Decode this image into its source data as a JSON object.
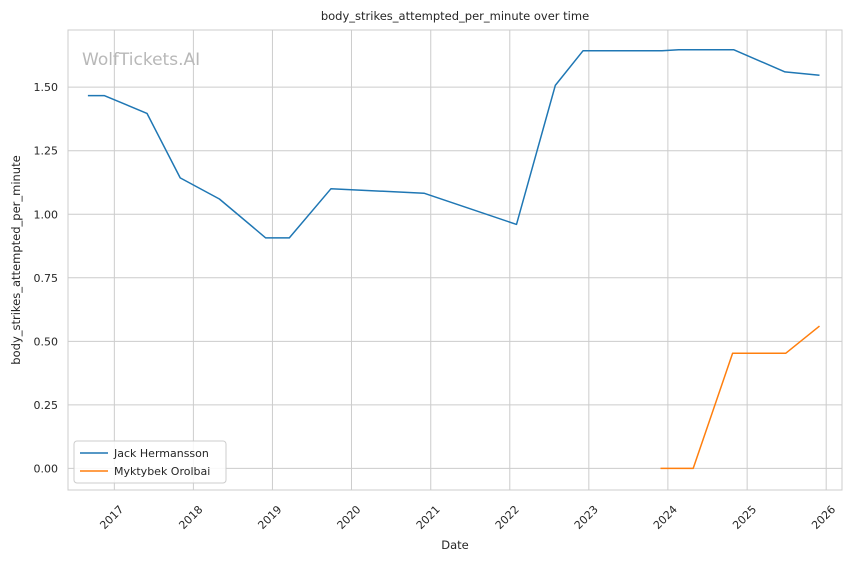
{
  "chart_data": {
    "type": "line",
    "title": "body_strikes_attempted_per_minute over time",
    "xlabel": "Date",
    "ylabel": "body_strikes_attempted_per_minute",
    "watermark": "WolfTickets.AI",
    "x_ticks": [
      "2017",
      "2018",
      "2019",
      "2020",
      "2021",
      "2022",
      "2023",
      "2024",
      "2025",
      "2026"
    ],
    "y_ticks": [
      "0.00",
      "0.25",
      "0.50",
      "0.75",
      "1.00",
      "1.25",
      "1.50"
    ],
    "xlim": [
      "2016-06-01",
      "2026-03-15"
    ],
    "ylim": [
      -0.085,
      1.725
    ],
    "grid": true,
    "legend_position": "lower-left",
    "series": [
      {
        "name": "Jack Hermansson",
        "color": "#1f77b4",
        "points": [
          [
            "2016-09-01",
            1.467
          ],
          [
            "2016-11-15",
            1.467
          ],
          [
            "2017-06-01",
            1.397
          ],
          [
            "2017-11-01",
            1.143
          ],
          [
            "2018-05-01",
            1.06
          ],
          [
            "2018-12-01",
            0.907
          ],
          [
            "2019-03-20",
            0.907
          ],
          [
            "2019-09-28",
            1.1
          ],
          [
            "2020-12-01",
            1.083
          ],
          [
            "2022-02-01",
            0.96
          ],
          [
            "2022-07-30",
            1.507
          ],
          [
            "2022-12-05",
            1.643
          ],
          [
            "2023-12-05",
            1.643
          ],
          [
            "2024-02-20",
            1.647
          ],
          [
            "2024-11-01",
            1.647
          ],
          [
            "2025-06-25",
            1.56
          ],
          [
            "2025-12-01",
            1.547
          ]
        ]
      },
      {
        "name": "Myktybek Orolbai",
        "color": "#ff7f0e",
        "points": [
          [
            "2023-11-28",
            0.0
          ],
          [
            "2024-04-27",
            0.0
          ],
          [
            "2024-10-26",
            0.453
          ],
          [
            "2025-06-28",
            0.453
          ],
          [
            "2025-12-01",
            0.56
          ]
        ]
      }
    ]
  }
}
